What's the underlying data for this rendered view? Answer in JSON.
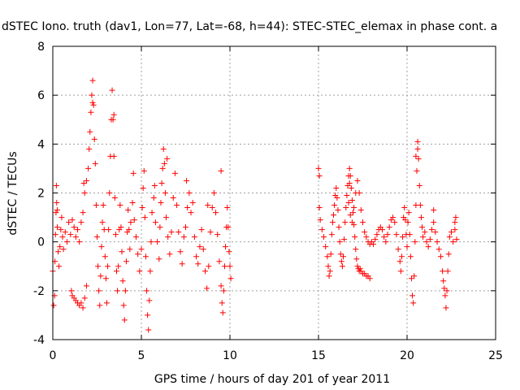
{
  "chart_data": {
    "type": "scatter",
    "title": "dSTEC Iono. truth (dav1, Lon=77, Lat=-68, h=44): STEC-STEC_elemax in phase cont. a",
    "xlabel": "GPS time / hours of day 201 of year 2011",
    "ylabel": "dSTEC  / TECUs",
    "xlim": [
      0,
      25
    ],
    "ylim": [
      -4,
      8
    ],
    "x_ticks": [
      0,
      5,
      10,
      15,
      20,
      25
    ],
    "y_ticks": [
      -4,
      -2,
      0,
      2,
      4,
      6,
      8
    ],
    "x_tick_labels": [
      "0",
      "5",
      "10",
      "15",
      "20",
      "25"
    ],
    "y_tick_labels": [
      "-4",
      "-2",
      "0",
      "2",
      "4",
      "6",
      "8"
    ],
    "grid": true,
    "marker": "+",
    "color": "#ff0000",
    "series": [
      {
        "name": "dSTEC",
        "points": [
          [
            0.0,
            -1.2
          ],
          [
            0.05,
            -2.6
          ],
          [
            0.1,
            -2.2
          ],
          [
            0.12,
            -0.8
          ],
          [
            0.15,
            0.3
          ],
          [
            0.18,
            1.2
          ],
          [
            0.2,
            2.3
          ],
          [
            0.22,
            1.6
          ],
          [
            0.25,
            0.6
          ],
          [
            0.3,
            -0.4
          ],
          [
            0.35,
            -1.0
          ],
          [
            0.4,
            -0.2
          ],
          [
            0.45,
            0.5
          ],
          [
            0.5,
            1.0
          ],
          [
            0.55,
            0.2
          ],
          [
            0.6,
            -0.3
          ],
          [
            0.7,
            0.4
          ],
          [
            0.8,
            0.0
          ],
          [
            0.9,
            0.8
          ],
          [
            1.0,
            0.3
          ],
          [
            1.05,
            -2.0
          ],
          [
            1.1,
            -2.2
          ],
          [
            1.2,
            -2.3
          ],
          [
            1.3,
            -2.4
          ],
          [
            1.4,
            -2.5
          ],
          [
            1.5,
            -2.6
          ],
          [
            1.6,
            -2.5
          ],
          [
            1.7,
            -2.7
          ],
          [
            1.8,
            -2.3
          ],
          [
            1.9,
            -1.8
          ],
          [
            1.1,
            0.9
          ],
          [
            1.2,
            0.6
          ],
          [
            1.3,
            0.2
          ],
          [
            1.4,
            0.5
          ],
          [
            1.5,
            0.0
          ],
          [
            1.6,
            0.8
          ],
          [
            1.7,
            1.2
          ],
          [
            1.8,
            2.0
          ],
          [
            1.9,
            2.5
          ],
          [
            2.0,
            3.0
          ],
          [
            2.05,
            3.8
          ],
          [
            2.1,
            4.5
          ],
          [
            2.15,
            5.3
          ],
          [
            2.2,
            6.0
          ],
          [
            2.25,
            6.6
          ],
          [
            2.3,
            5.6
          ],
          [
            2.35,
            4.2
          ],
          [
            2.4,
            3.2
          ],
          [
            2.45,
            1.5
          ],
          [
            2.5,
            0.2
          ],
          [
            2.55,
            -1.0
          ],
          [
            2.6,
            -2.0
          ],
          [
            2.65,
            -2.6
          ],
          [
            2.7,
            -1.4
          ],
          [
            2.75,
            -0.2
          ],
          [
            2.8,
            0.8
          ],
          [
            2.85,
            1.5
          ],
          [
            2.9,
            0.5
          ],
          [
            2.95,
            -0.6
          ],
          [
            3.0,
            -1.5
          ],
          [
            3.05,
            -2.5
          ],
          [
            3.1,
            -1.0
          ],
          [
            3.15,
            0.5
          ],
          [
            3.2,
            2.0
          ],
          [
            3.25,
            3.5
          ],
          [
            3.3,
            5.0
          ],
          [
            3.35,
            6.2
          ],
          [
            3.4,
            5.0
          ],
          [
            3.45,
            3.5
          ],
          [
            3.5,
            1.8
          ],
          [
            3.55,
            0.3
          ],
          [
            3.6,
            -1.2
          ],
          [
            3.65,
            -2.0
          ],
          [
            3.7,
            -1.0
          ],
          [
            3.75,
            0.5
          ],
          [
            3.8,
            1.5
          ],
          [
            3.85,
            0.6
          ],
          [
            3.9,
            -0.4
          ],
          [
            3.95,
            -1.6
          ],
          [
            4.0,
            -2.6
          ],
          [
            4.05,
            -3.2
          ],
          [
            4.1,
            -2.0
          ],
          [
            4.15,
            -0.8
          ],
          [
            4.2,
            0.4
          ],
          [
            4.25,
            1.3
          ],
          [
            4.3,
            0.5
          ],
          [
            4.35,
            -0.3
          ],
          [
            4.4,
            0.8
          ],
          [
            4.5,
            1.6
          ],
          [
            4.6,
            0.9
          ],
          [
            4.7,
            0.2
          ],
          [
            4.8,
            -0.5
          ],
          [
            4.9,
            -1.2
          ],
          [
            5.0,
            -0.3
          ],
          [
            5.05,
            1.4
          ],
          [
            5.1,
            2.2
          ],
          [
            5.15,
            2.9
          ],
          [
            5.2,
            1.0
          ],
          [
            5.25,
            -0.6
          ],
          [
            5.3,
            -2.0
          ],
          [
            5.35,
            -3.0
          ],
          [
            5.4,
            -3.6
          ],
          [
            5.45,
            -2.4
          ],
          [
            5.5,
            -1.2
          ],
          [
            5.55,
            0.0
          ],
          [
            5.6,
            1.2
          ],
          [
            5.7,
            1.8
          ],
          [
            5.8,
            0.8
          ],
          [
            5.9,
            0.0
          ],
          [
            6.0,
            -0.7
          ],
          [
            6.05,
            0.6
          ],
          [
            6.1,
            1.6
          ],
          [
            6.15,
            2.4
          ],
          [
            6.2,
            3.0
          ],
          [
            6.25,
            3.8
          ],
          [
            6.3,
            3.2
          ],
          [
            6.35,
            2.0
          ],
          [
            6.4,
            1.0
          ],
          [
            6.5,
            0.2
          ],
          [
            6.6,
            -0.5
          ],
          [
            6.7,
            0.4
          ],
          [
            6.8,
            1.8
          ],
          [
            6.9,
            2.8
          ],
          [
            7.0,
            1.5
          ],
          [
            7.1,
            0.4
          ],
          [
            7.2,
            -0.4
          ],
          [
            7.3,
            -0.9
          ],
          [
            7.4,
            0.2
          ],
          [
            7.5,
            0.6
          ],
          [
            7.6,
            1.4
          ],
          [
            7.7,
            2.0
          ],
          [
            7.8,
            1.2
          ],
          [
            7.9,
            1.6
          ],
          [
            8.0,
            0.2
          ],
          [
            8.1,
            -0.6
          ],
          [
            8.2,
            -0.9
          ],
          [
            8.3,
            -0.2
          ],
          [
            8.4,
            0.5
          ],
          [
            8.5,
            -0.3
          ],
          [
            8.6,
            -1.2
          ],
          [
            8.7,
            -1.9
          ],
          [
            8.8,
            -1.0
          ],
          [
            8.9,
            0.4
          ],
          [
            9.0,
            1.4
          ],
          [
            9.1,
            2.0
          ],
          [
            9.2,
            1.2
          ],
          [
            9.3,
            0.3
          ],
          [
            9.4,
            -0.8
          ],
          [
            9.5,
            -1.8
          ],
          [
            9.55,
            -2.5
          ],
          [
            9.6,
            -2.9
          ],
          [
            9.65,
            -2.0
          ],
          [
            9.7,
            -1.0
          ],
          [
            9.75,
            -0.2
          ],
          [
            9.8,
            0.6
          ],
          [
            9.85,
            1.4
          ],
          [
            9.9,
            0.6
          ],
          [
            9.95,
            -0.4
          ],
          [
            10.0,
            -1.0
          ],
          [
            10.05,
            -1.5
          ],
          [
            9.5,
            2.9
          ],
          [
            4.55,
            2.8
          ],
          [
            3.45,
            5.2
          ],
          [
            2.25,
            5.7
          ],
          [
            1.75,
            2.4
          ],
          [
            0.25,
            1.3
          ],
          [
            7.55,
            2.5
          ],
          [
            6.45,
            3.4
          ],
          [
            5.75,
            2.3
          ],
          [
            8.75,
            1.5
          ],
          [
            15.0,
            3.0
          ],
          [
            15.05,
            1.4
          ],
          [
            15.1,
            0.9
          ],
          [
            15.2,
            0.5
          ],
          [
            15.3,
            0.2
          ],
          [
            15.4,
            -0.2
          ],
          [
            15.5,
            -0.6
          ],
          [
            15.55,
            -1.0
          ],
          [
            15.6,
            -1.4
          ],
          [
            15.65,
            -1.2
          ],
          [
            15.7,
            -0.5
          ],
          [
            15.75,
            0.3
          ],
          [
            15.8,
            0.8
          ],
          [
            15.85,
            1.1
          ],
          [
            15.9,
            1.5
          ],
          [
            15.95,
            1.9
          ],
          [
            16.0,
            2.2
          ],
          [
            16.05,
            1.8
          ],
          [
            16.1,
            1.3
          ],
          [
            16.15,
            0.6
          ],
          [
            16.2,
            0.0
          ],
          [
            16.25,
            -0.5
          ],
          [
            16.3,
            -0.8
          ],
          [
            16.35,
            -1.0
          ],
          [
            16.4,
            -0.6
          ],
          [
            16.45,
            0.1
          ],
          [
            16.5,
            0.8
          ],
          [
            16.55,
            1.4
          ],
          [
            16.6,
            1.9
          ],
          [
            16.65,
            2.3
          ],
          [
            16.7,
            2.7
          ],
          [
            16.75,
            3.0
          ],
          [
            16.8,
            2.7
          ],
          [
            16.85,
            2.2
          ],
          [
            16.9,
            1.7
          ],
          [
            16.95,
            1.2
          ],
          [
            17.0,
            0.7
          ],
          [
            17.05,
            0.2
          ],
          [
            17.1,
            -0.3
          ],
          [
            17.15,
            -0.7
          ],
          [
            17.2,
            -1.0
          ],
          [
            17.25,
            -1.1
          ],
          [
            17.3,
            -1.2
          ],
          [
            17.35,
            -1.1
          ],
          [
            17.4,
            -1.2
          ],
          [
            17.5,
            -1.3
          ],
          [
            17.6,
            -1.3
          ],
          [
            17.7,
            -1.4
          ],
          [
            17.8,
            -1.4
          ],
          [
            17.9,
            -1.5
          ],
          [
            16.7,
            1.6
          ],
          [
            16.8,
            1.1
          ],
          [
            16.9,
            0.8
          ],
          [
            17.0,
            1.4
          ],
          [
            17.1,
            2.0
          ],
          [
            17.2,
            2.5
          ],
          [
            17.3,
            2.0
          ],
          [
            17.4,
            1.3
          ],
          [
            17.5,
            0.8
          ],
          [
            17.6,
            0.4
          ],
          [
            17.7,
            0.2
          ],
          [
            17.8,
            0.0
          ],
          [
            17.9,
            -0.1
          ],
          [
            18.0,
            0.0
          ],
          [
            18.1,
            -0.1
          ],
          [
            18.2,
            0.1
          ],
          [
            18.3,
            0.3
          ],
          [
            18.4,
            0.5
          ],
          [
            18.5,
            0.6
          ],
          [
            18.6,
            0.5
          ],
          [
            18.7,
            0.2
          ],
          [
            18.8,
            0.0
          ],
          [
            18.9,
            0.3
          ],
          [
            19.0,
            0.6
          ],
          [
            19.1,
            0.9
          ],
          [
            19.2,
            1.0
          ],
          [
            19.3,
            0.8
          ],
          [
            19.4,
            0.3
          ],
          [
            19.5,
            -0.3
          ],
          [
            19.6,
            -0.8
          ],
          [
            19.65,
            -1.2
          ],
          [
            19.7,
            -0.6
          ],
          [
            19.75,
            0.2
          ],
          [
            19.8,
            1.0
          ],
          [
            19.85,
            1.4
          ],
          [
            19.9,
            0.9
          ],
          [
            19.95,
            0.3
          ],
          [
            20.0,
            -0.2
          ],
          [
            20.05,
            0.8
          ],
          [
            20.1,
            1.2
          ],
          [
            20.15,
            0.3
          ],
          [
            20.2,
            -0.6
          ],
          [
            20.25,
            -1.5
          ],
          [
            20.3,
            -2.2
          ],
          [
            20.35,
            -2.5
          ],
          [
            20.4,
            -1.4
          ],
          [
            20.45,
            0.0
          ],
          [
            20.5,
            1.5
          ],
          [
            20.55,
            2.9
          ],
          [
            20.6,
            4.1
          ],
          [
            20.65,
            3.4
          ],
          [
            20.7,
            2.3
          ],
          [
            20.75,
            1.5
          ],
          [
            20.8,
            1.0
          ],
          [
            20.85,
            0.6
          ],
          [
            20.9,
            0.2
          ],
          [
            21.0,
            0.4
          ],
          [
            21.1,
            0.0
          ],
          [
            21.2,
            -0.2
          ],
          [
            21.3,
            0.1
          ],
          [
            21.4,
            0.5
          ],
          [
            21.5,
            0.8
          ],
          [
            21.6,
            0.4
          ],
          [
            21.7,
            0.0
          ],
          [
            21.8,
            -0.3
          ],
          [
            21.9,
            -0.6
          ],
          [
            22.0,
            -1.2
          ],
          [
            22.05,
            -1.6
          ],
          [
            22.1,
            -1.9
          ],
          [
            22.15,
            -2.2
          ],
          [
            22.2,
            -2.7
          ],
          [
            22.25,
            -2.0
          ],
          [
            22.3,
            -1.2
          ],
          [
            22.35,
            -0.5
          ],
          [
            22.4,
            0.2
          ],
          [
            22.5,
            0.4
          ],
          [
            22.6,
            0.0
          ],
          [
            22.7,
            0.5
          ],
          [
            22.75,
            1.0
          ],
          [
            22.8,
            0.1
          ],
          [
            20.5,
            3.5
          ],
          [
            20.6,
            3.8
          ],
          [
            16.75,
            2.4
          ],
          [
            15.05,
            2.7
          ],
          [
            21.5,
            1.3
          ],
          [
            22.7,
            0.8
          ]
        ]
      }
    ]
  }
}
